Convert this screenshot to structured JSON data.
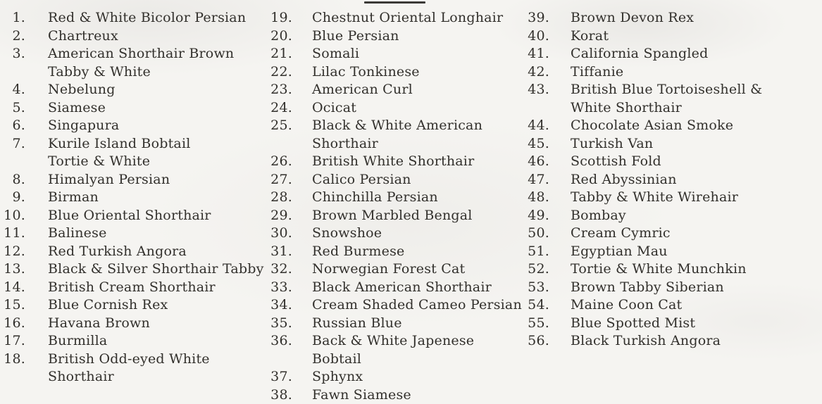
{
  "document": {
    "background_color": "#f5f4f1",
    "text_color": "#32302c",
    "heading_rule_color": "#3c3a37"
  },
  "breed_list": {
    "columns": [
      {
        "items": [
          {
            "number": "1.",
            "label": "Red & White Bicolor Persian"
          },
          {
            "number": "2.",
            "label": "Chartreux"
          },
          {
            "number": "3.",
            "label": "American Shorthair Brown\nTabby & White"
          },
          {
            "number": "4.",
            "label": "Nebelung"
          },
          {
            "number": "5.",
            "label": "Siamese"
          },
          {
            "number": "6.",
            "label": "Singapura"
          },
          {
            "number": "7.",
            "label": "Kurile Island Bobtail\nTortie & White"
          },
          {
            "number": "8.",
            "label": "Himalyan Persian"
          },
          {
            "number": "9.",
            "label": "Birman"
          },
          {
            "number": "10.",
            "label": "Blue Oriental Shorthair"
          },
          {
            "number": "11.",
            "label": "Balinese"
          },
          {
            "number": "12.",
            "label": "Red Turkish Angora"
          },
          {
            "number": "13.",
            "label": "Black & Silver Shorthair Tabby"
          },
          {
            "number": "14.",
            "label": "British Cream Shorthair"
          },
          {
            "number": "15.",
            "label": "Blue Cornish Rex"
          },
          {
            "number": "16.",
            "label": "Havana Brown"
          },
          {
            "number": "17.",
            "label": "Burmilla"
          },
          {
            "number": "18.",
            "label": "British Odd-eyed White\nShorthair"
          }
        ]
      },
      {
        "items": [
          {
            "number": "19.",
            "label": "Chestnut Oriental Longhair"
          },
          {
            "number": "20.",
            "label": "Blue Persian"
          },
          {
            "number": "21.",
            "label": "Somali"
          },
          {
            "number": "22.",
            "label": "Lilac Tonkinese"
          },
          {
            "number": "23.",
            "label": "American Curl"
          },
          {
            "number": "24.",
            "label": "Ocicat"
          },
          {
            "number": "25.",
            "label": "Black & White American\nShorthair"
          },
          {
            "number": "26.",
            "label": "British White Shorthair"
          },
          {
            "number": "27.",
            "label": "Calico Persian"
          },
          {
            "number": "28.",
            "label": "Chinchilla Persian"
          },
          {
            "number": "29.",
            "label": "Brown Marbled Bengal"
          },
          {
            "number": "30.",
            "label": "Snowshoe"
          },
          {
            "number": "31.",
            "label": "Red Burmese"
          },
          {
            "number": "32.",
            "label": "Norwegian Forest Cat"
          },
          {
            "number": "33.",
            "label": "Black American Shorthair"
          },
          {
            "number": "34.",
            "label": "Cream Shaded Cameo Persian"
          },
          {
            "number": "35.",
            "label": "Russian Blue"
          },
          {
            "number": "36.",
            "label": "Back & White Japenese Bobtail"
          },
          {
            "number": "37.",
            "label": "Sphynx"
          },
          {
            "number": "38.",
            "label": "Fawn Siamese"
          }
        ]
      },
      {
        "items": [
          {
            "number": "39.",
            "label": "Brown Devon Rex"
          },
          {
            "number": "40.",
            "label": "Korat"
          },
          {
            "number": "41.",
            "label": "California Spangled"
          },
          {
            "number": "42.",
            "label": "Tiffanie"
          },
          {
            "number": "43.",
            "label": "British Blue Tortoiseshell &\nWhite Shorthair"
          },
          {
            "number": "44.",
            "label": "Chocolate Asian Smoke"
          },
          {
            "number": "45.",
            "label": "Turkish Van"
          },
          {
            "number": "46.",
            "label": "Scottish Fold"
          },
          {
            "number": "47.",
            "label": "Red Abyssinian"
          },
          {
            "number": "48.",
            "label": "Tabby & White Wirehair"
          },
          {
            "number": "49.",
            "label": "Bombay"
          },
          {
            "number": "50.",
            "label": "Cream Cymric"
          },
          {
            "number": "51.",
            "label": "Egyptian Mau"
          },
          {
            "number": "52.",
            "label": "Tortie & White Munchkin"
          },
          {
            "number": "53.",
            "label": "Brown Tabby Siberian"
          },
          {
            "number": "54.",
            "label": "Maine Coon Cat"
          },
          {
            "number": "55.",
            "label": "Blue Spotted Mist"
          },
          {
            "number": "56.",
            "label": "Black Turkish Angora"
          }
        ]
      }
    ]
  }
}
